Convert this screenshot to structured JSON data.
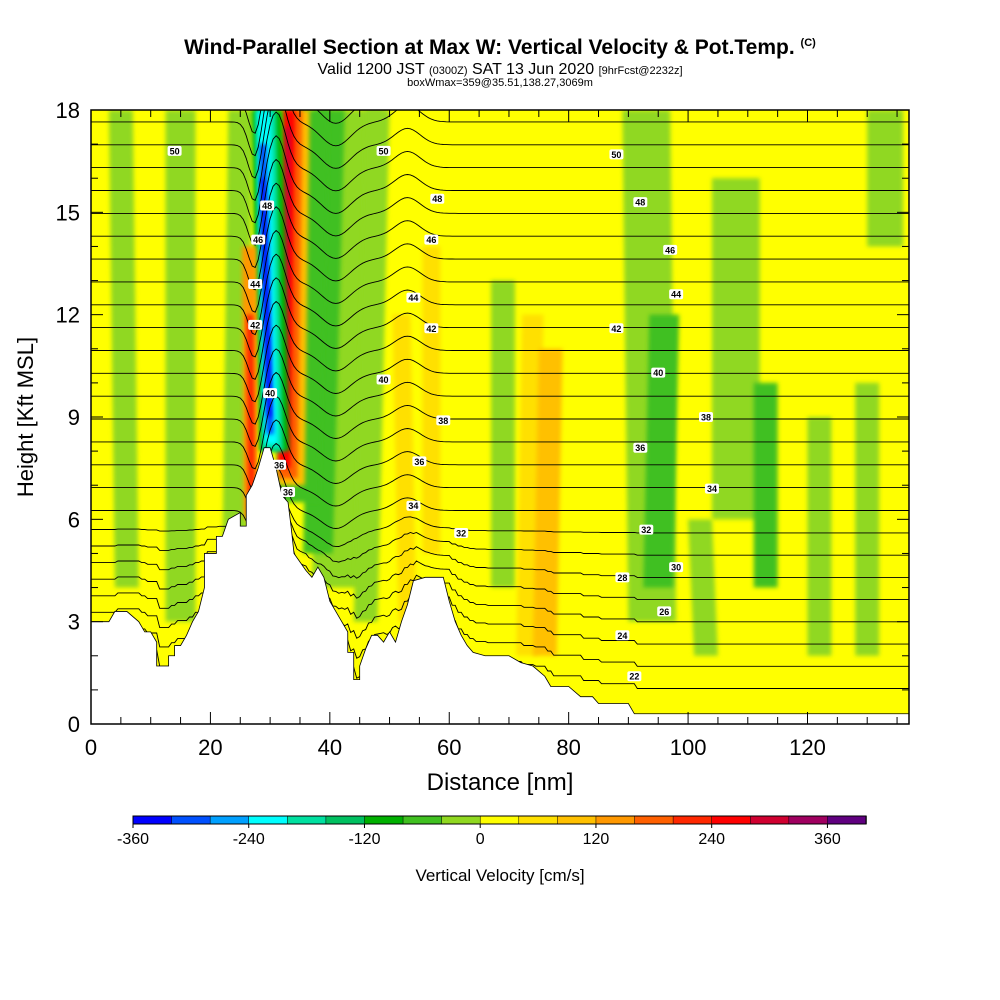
{
  "title": {
    "main": "Wind-Parallel Section at Max W: Vertical Velocity & Pot.Temp.",
    "copyright": "(C)",
    "valid_prefix": "Valid 1200 JST",
    "valid_utc": "(0300Z)",
    "valid_date": "SAT 13 Jun 2020",
    "forecast": "[9hrFcst@2232z]",
    "box_info": "boxWmax=359@35.51,138.27,3069m"
  },
  "chart_data": {
    "type": "heatmap",
    "xlabel": "Distance [nm]",
    "ylabel": "Height [Kft MSL]",
    "xlim": [
      0,
      137
    ],
    "ylim": [
      0,
      18
    ],
    "x_ticks": [
      "0",
      "20",
      "40",
      "60",
      "80",
      "100",
      "120"
    ],
    "y_ticks": [
      "0",
      "3",
      "6",
      "9",
      "12",
      "15",
      "18"
    ],
    "colorbar": {
      "label": "Vertical Velocity [cm/s]",
      "tick_labels": [
        "-360",
        "-240",
        "-120",
        "0",
        "120",
        "240",
        "360"
      ],
      "colors": [
        "#0000ff",
        "#0050ff",
        "#00a0ff",
        "#00ffff",
        "#00e0a0",
        "#00c060",
        "#00b000",
        "#40c020",
        "#90d820",
        "#ffff00",
        "#ffe000",
        "#ffc000",
        "#ff9800",
        "#ff6000",
        "#ff2800",
        "#ff0000",
        "#d00030",
        "#a00060",
        "#600080"
      ]
    },
    "theta_contours": {
      "unit_note": "potential temperature contour labels",
      "labels": [
        {
          "x": 14,
          "y": 16.8,
          "text": "50"
        },
        {
          "x": 49,
          "y": 16.8,
          "text": "50"
        },
        {
          "x": 88,
          "y": 16.7,
          "text": "50"
        },
        {
          "x": 29.5,
          "y": 15.2,
          "text": "48"
        },
        {
          "x": 58,
          "y": 15.4,
          "text": "48"
        },
        {
          "x": 92,
          "y": 15.3,
          "text": "48"
        },
        {
          "x": 28,
          "y": 14.2,
          "text": "46"
        },
        {
          "x": 57,
          "y": 14.2,
          "text": "46"
        },
        {
          "x": 97,
          "y": 13.9,
          "text": "46"
        },
        {
          "x": 27.5,
          "y": 12.9,
          "text": "44"
        },
        {
          "x": 54,
          "y": 12.5,
          "text": "44"
        },
        {
          "x": 98,
          "y": 12.6,
          "text": "44"
        },
        {
          "x": 27.5,
          "y": 11.7,
          "text": "42"
        },
        {
          "x": 57,
          "y": 11.6,
          "text": "42"
        },
        {
          "x": 88,
          "y": 11.6,
          "text": "42"
        },
        {
          "x": 30,
          "y": 9.7,
          "text": "40"
        },
        {
          "x": 49,
          "y": 10.1,
          "text": "40"
        },
        {
          "x": 95,
          "y": 10.3,
          "text": "40"
        },
        {
          "x": 59,
          "y": 8.9,
          "text": "38"
        },
        {
          "x": 103,
          "y": 9.0,
          "text": "38"
        },
        {
          "x": 31.5,
          "y": 7.6,
          "text": "36"
        },
        {
          "x": 55,
          "y": 7.7,
          "text": "36"
        },
        {
          "x": 92,
          "y": 8.1,
          "text": "36"
        },
        {
          "x": 33,
          "y": 6.8,
          "text": "36"
        },
        {
          "x": 54,
          "y": 6.4,
          "text": "34"
        },
        {
          "x": 104,
          "y": 6.9,
          "text": "34"
        },
        {
          "x": 62,
          "y": 5.6,
          "text": "32"
        },
        {
          "x": 93,
          "y": 5.7,
          "text": "32"
        },
        {
          "x": 98,
          "y": 4.6,
          "text": "30"
        },
        {
          "x": 89,
          "y": 4.3,
          "text": "28"
        },
        {
          "x": 96,
          "y": 3.3,
          "text": "26"
        },
        {
          "x": 89,
          "y": 2.6,
          "text": "24"
        },
        {
          "x": 91,
          "y": 1.4,
          "text": "22"
        }
      ]
    }
  }
}
